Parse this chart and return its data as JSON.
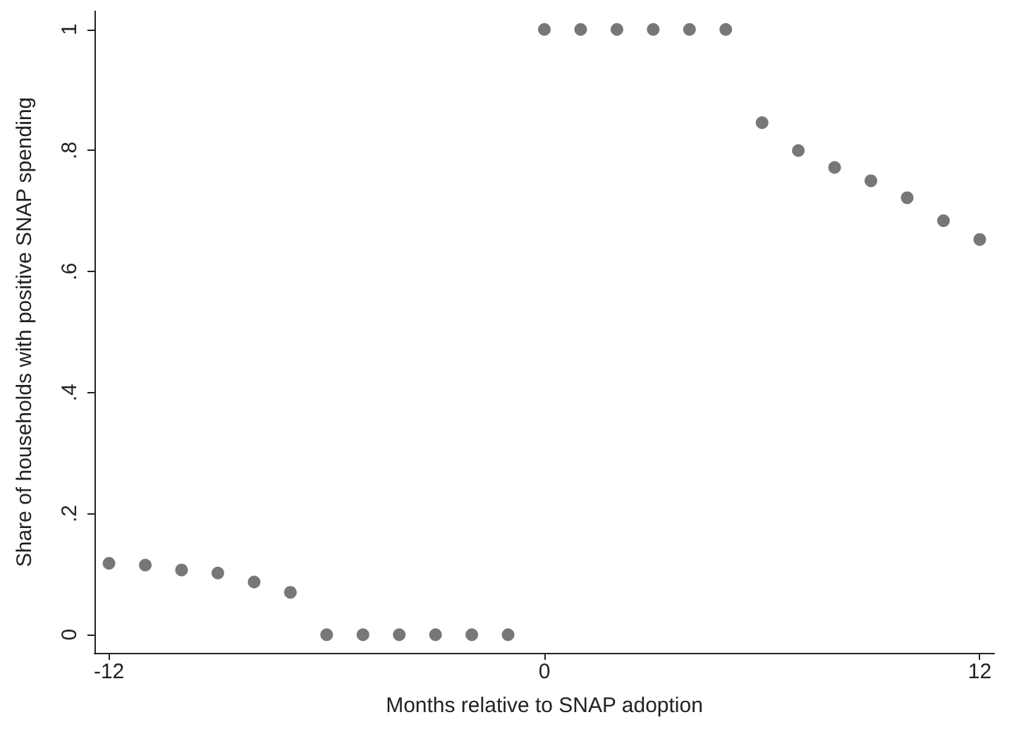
{
  "chart_data": {
    "type": "scatter",
    "xlabel": "Months relative to SNAP adoption",
    "ylabel": "Share of households with positive SNAP spending",
    "x": [
      -12,
      -11,
      -10,
      -9,
      -8,
      -7,
      -6,
      -5,
      -4,
      -3,
      -2,
      -1,
      0,
      1,
      2,
      3,
      4,
      5,
      6,
      7,
      8,
      9,
      10,
      11,
      12
    ],
    "series": [
      {
        "color": "#555555",
        "values": [
          0.118,
          0.115,
          0.107,
          0.102,
          0.087,
          0.07,
          0,
          0,
          0,
          0,
          0,
          0,
          1,
          1,
          1,
          1,
          1,
          1,
          0.846,
          0.8,
          0.772,
          0.75,
          0.722,
          0.684,
          0.653
        ]
      }
    ],
    "xlim": [
      -12.4,
      12.4
    ],
    "xticks": [
      -12,
      0,
      12
    ],
    "ylim": [
      -0.03,
      1.03
    ],
    "yticks": [
      {
        "value": 0,
        "label": "0"
      },
      {
        "value": 0.2,
        "label": ".2"
      },
      {
        "value": 0.4,
        "label": ".4"
      },
      {
        "value": 0.6,
        "label": ".6"
      },
      {
        "value": 0.8,
        "label": ".8"
      },
      {
        "value": 1,
        "label": "1"
      }
    ],
    "marker": "circle"
  }
}
